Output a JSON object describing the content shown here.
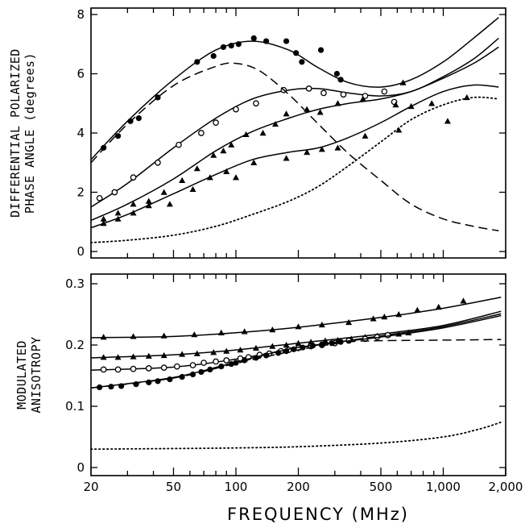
{
  "chart_data": [
    {
      "type": "line",
      "panel": "top",
      "xlabel": "FREQUENCY (MHz)",
      "ylabel_lines": [
        "DIFFERENTIAL POLARIZED",
        "PHASE ANGLE (degrees)"
      ],
      "xscale": "log",
      "xlim": [
        20,
        2000
      ],
      "ylim": [
        0,
        8
      ],
      "yticks": [
        0,
        2,
        4,
        6,
        8
      ],
      "ytick_labels": [
        "0",
        "2",
        "4",
        "6",
        "8"
      ],
      "grid": false,
      "series": [
        {
          "marker": "filled-circle",
          "style": "solid",
          "x": [
            23,
            27,
            31,
            34,
            42,
            65,
            78,
            87,
            95,
            103,
            122,
            140,
            175,
            195,
            208,
            257,
            307,
            320
          ],
          "y": [
            3.5,
            3.9,
            4.4,
            4.5,
            5.2,
            6.4,
            6.6,
            6.9,
            6.95,
            7.0,
            7.2,
            7.1,
            7.1,
            6.7,
            6.4,
            6.8,
            6.0,
            5.8
          ],
          "curve_x": [
            20,
            30,
            50,
            80,
            120,
            180,
            250,
            350,
            500,
            700,
            1000,
            1400,
            1850
          ],
          "curve_y": [
            3.1,
            4.4,
            5.8,
            6.8,
            7.1,
            6.8,
            6.2,
            5.7,
            5.55,
            5.8,
            6.4,
            7.2,
            7.9
          ]
        },
        {
          "marker": "open-circle",
          "style": "solid",
          "x": [
            22,
            26,
            32,
            42,
            53,
            68,
            80,
            100,
            125,
            170,
            225,
            265,
            330,
            420,
            520,
            580
          ],
          "y": [
            1.8,
            2.0,
            2.5,
            3.0,
            3.6,
            4.0,
            4.35,
            4.8,
            5.0,
            5.45,
            5.5,
            5.35,
            5.3,
            5.25,
            5.4,
            5.05
          ],
          "curve_x": [
            20,
            30,
            50,
            80,
            120,
            180,
            250,
            350,
            500,
            700,
            1000,
            1400,
            1850
          ],
          "curve_y": [
            1.5,
            2.3,
            3.5,
            4.5,
            5.15,
            5.45,
            5.5,
            5.35,
            5.25,
            5.4,
            5.9,
            6.5,
            7.2
          ]
        },
        {
          "marker": "filled-triangle",
          "style": "solid",
          "x": [
            23,
            27,
            32,
            38,
            45,
            55,
            65,
            78,
            87,
            95,
            112,
            135,
            155,
            175,
            220,
            255,
            310,
            410,
            590,
            640,
            700,
            880
          ],
          "y": [
            1.1,
            1.3,
            1.6,
            1.7,
            2.0,
            2.4,
            2.8,
            3.25,
            3.4,
            3.6,
            3.95,
            4.0,
            4.3,
            4.65,
            4.8,
            4.7,
            5.0,
            5.15,
            4.95,
            5.7,
            4.9,
            5.0
          ],
          "curve_x": [
            20,
            30,
            50,
            80,
            120,
            180,
            250,
            350,
            500,
            700,
            1000,
            1400,
            1850
          ],
          "curve_y": [
            1.05,
            1.6,
            2.45,
            3.4,
            4.05,
            4.5,
            4.8,
            5.0,
            5.15,
            5.4,
            5.85,
            6.35,
            6.9
          ]
        },
        {
          "marker": "filled-triangle",
          "style": "solid",
          "x": [
            23,
            27,
            32,
            38,
            48,
            62,
            75,
            90,
            100,
            122,
            175,
            220,
            260,
            310,
            420,
            610,
            1050,
            1300
          ],
          "y": [
            0.95,
            1.1,
            1.3,
            1.55,
            1.6,
            2.1,
            2.5,
            2.7,
            2.5,
            3.0,
            3.15,
            3.35,
            3.45,
            3.5,
            3.9,
            4.1,
            4.4,
            5.2
          ],
          "curve_x": [
            20,
            30,
            50,
            80,
            120,
            180,
            250,
            350,
            500,
            700,
            1000,
            1400,
            1850
          ],
          "curve_y": [
            0.8,
            1.25,
            1.95,
            2.6,
            3.1,
            3.35,
            3.5,
            3.85,
            4.35,
            4.9,
            5.4,
            5.62,
            5.55
          ]
        },
        {
          "marker": "none",
          "style": "dashed",
          "curve_x": [
            20,
            30,
            50,
            80,
            100,
            130,
            180,
            250,
            350,
            500,
            700,
            1000,
            1400,
            1850
          ],
          "curve_y": [
            3.0,
            4.3,
            5.6,
            6.25,
            6.35,
            6.1,
            5.3,
            4.3,
            3.3,
            2.4,
            1.6,
            1.1,
            0.85,
            0.7
          ]
        },
        {
          "marker": "none",
          "style": "dotted",
          "curve_x": [
            20,
            30,
            50,
            80,
            120,
            180,
            250,
            350,
            500,
            700,
            1000,
            1400,
            1850
          ],
          "curve_y": [
            0.3,
            0.38,
            0.55,
            0.85,
            1.25,
            1.7,
            2.2,
            2.9,
            3.7,
            4.45,
            4.95,
            5.2,
            5.15
          ]
        }
      ]
    },
    {
      "type": "line",
      "panel": "bottom",
      "xlabel": "FREQUENCY (MHz)",
      "ylabel_lines": [
        "MODULATED",
        "ANISOTROPY"
      ],
      "xscale": "log",
      "xlim": [
        20,
        2000
      ],
      "ylim": [
        0,
        0.3
      ],
      "yticks": [
        0,
        0.1,
        0.2,
        0.3
      ],
      "ytick_labels": [
        "0",
        "0.1",
        "0.2",
        "0.3"
      ],
      "xticks": [
        20,
        50,
        100,
        200,
        500,
        1000,
        2000
      ],
      "xtick_labels": [
        "20",
        "50",
        "100",
        "200",
        "500",
        "1,000",
        "2,000"
      ],
      "grid": false,
      "series": [
        {
          "marker": "filled-triangle",
          "style": "solid",
          "x": [
            23,
            32,
            45,
            63,
            85,
            110,
            150,
            200,
            260,
            350,
            460,
            520,
            610,
            750,
            950,
            1250
          ],
          "y": [
            0.213,
            0.214,
            0.215,
            0.217,
            0.22,
            0.222,
            0.225,
            0.23,
            0.233,
            0.237,
            0.243,
            0.246,
            0.25,
            0.257,
            0.262,
            0.272
          ],
          "curve_x": [
            20,
            50,
            100,
            200,
            500,
            1000,
            1900
          ],
          "curve_y": [
            0.212,
            0.214,
            0.22,
            0.229,
            0.245,
            0.26,
            0.278
          ]
        },
        {
          "marker": "filled-triangle",
          "style": "solid",
          "x": [
            23,
            27,
            32,
            38,
            45,
            55,
            65,
            78,
            90,
            105,
            125,
            150,
            175,
            200,
            230,
            270,
            310,
            360,
            420,
            480,
            540,
            610,
            680
          ],
          "y": [
            0.18,
            0.18,
            0.181,
            0.182,
            0.183,
            0.185,
            0.186,
            0.188,
            0.19,
            0.192,
            0.195,
            0.198,
            0.2,
            0.203,
            0.205,
            0.207,
            0.208,
            0.21,
            0.213,
            0.215,
            0.217,
            0.218,
            0.22
          ],
          "curve_x": [
            20,
            50,
            100,
            200,
            500,
            1000,
            1900
          ],
          "curve_y": [
            0.179,
            0.184,
            0.192,
            0.203,
            0.218,
            0.232,
            0.255
          ]
        },
        {
          "marker": "open-circle",
          "style": "solid",
          "x": [
            23,
            27,
            32,
            38,
            45,
            52,
            62,
            70,
            80,
            90,
            105,
            115,
            130,
            145,
            165,
            180,
            200,
            230,
            260,
            300,
            350,
            420,
            480,
            540
          ],
          "y": [
            0.16,
            0.16,
            0.161,
            0.162,
            0.163,
            0.165,
            0.167,
            0.171,
            0.173,
            0.175,
            0.178,
            0.18,
            0.184,
            0.186,
            0.19,
            0.192,
            0.195,
            0.198,
            0.2,
            0.203,
            0.207,
            0.21,
            0.213,
            0.216
          ],
          "curve_x": [
            20,
            50,
            100,
            200,
            500,
            1000,
            1900
          ],
          "curve_y": [
            0.159,
            0.164,
            0.177,
            0.195,
            0.215,
            0.23,
            0.251
          ]
        },
        {
          "marker": "filled-circle",
          "style": "solid",
          "x": [
            22,
            25,
            28,
            33,
            38,
            42,
            48,
            55,
            62,
            68,
            75,
            85,
            95,
            100,
            110,
            125,
            140,
            160,
            175,
            190,
            210,
            235,
            260,
            290,
            320
          ],
          "y": [
            0.131,
            0.132,
            0.133,
            0.136,
            0.139,
            0.141,
            0.144,
            0.148,
            0.152,
            0.156,
            0.16,
            0.165,
            0.169,
            0.171,
            0.175,
            0.179,
            0.183,
            0.187,
            0.19,
            0.193,
            0.196,
            0.199,
            0.201,
            0.203,
            0.205
          ],
          "curve_x": [
            20,
            50,
            100,
            200,
            500,
            1000,
            1900
          ],
          "curve_y": [
            0.13,
            0.147,
            0.172,
            0.196,
            0.213,
            0.228,
            0.248
          ]
        },
        {
          "marker": "none",
          "style": "dashed",
          "curve_x": [
            20,
            50,
            100,
            200,
            350,
            500,
            1000,
            1900
          ],
          "curve_y": [
            0.13,
            0.146,
            0.17,
            0.192,
            0.205,
            0.207,
            0.208,
            0.209
          ]
        },
        {
          "marker": "none",
          "style": "dotted",
          "curve_x": [
            20,
            50,
            100,
            200,
            500,
            1000,
            1500,
            1900
          ],
          "curve_y": [
            0.03,
            0.031,
            0.032,
            0.034,
            0.04,
            0.05,
            0.063,
            0.074
          ]
        }
      ]
    }
  ]
}
